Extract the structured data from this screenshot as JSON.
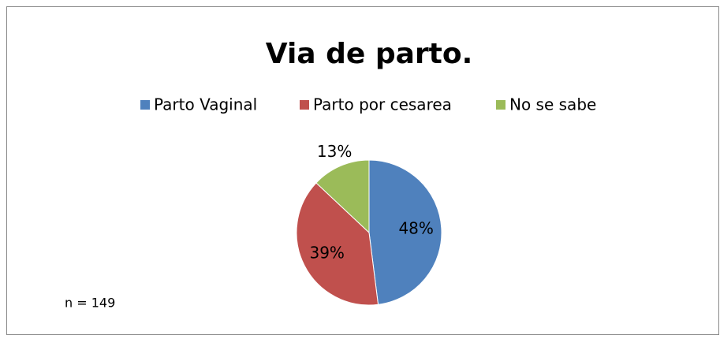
{
  "chart_data": {
    "type": "pie",
    "title": "Via de parto.",
    "categories": [
      "Parto Vaginal",
      "Parto por cesarea",
      "No se sabe"
    ],
    "values": [
      48,
      39,
      13
    ],
    "value_labels": [
      "48%",
      "39%",
      "13%"
    ],
    "colors": [
      "#4f81bd",
      "#c0504d",
      "#9bbb59"
    ],
    "legend": "top",
    "annotation": "n = 149"
  }
}
